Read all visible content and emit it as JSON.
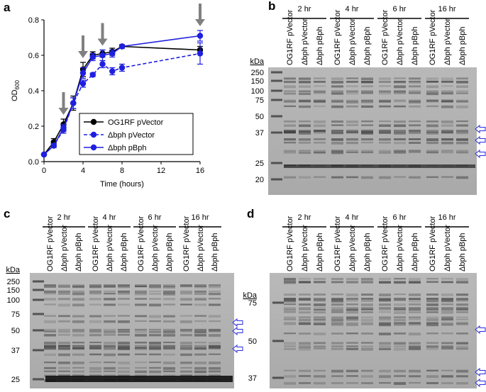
{
  "chart_data": {
    "type": "line",
    "panel_label": "a",
    "xlabel": "Time (hours)",
    "ylabel": {
      "text": "OD",
      "sub": "600"
    },
    "x": [
      0,
      1,
      2,
      3,
      4,
      5,
      6,
      7,
      8,
      16
    ],
    "series": [
      {
        "name": "OG1RF pVector",
        "color": "#000000",
        "line_style": "solid",
        "values": [
          0.04,
          0.11,
          0.21,
          0.33,
          0.52,
          0.6,
          0.61,
          0.62,
          0.65,
          0.63
        ],
        "errors": [
          0,
          0.02,
          0.03,
          0.04,
          0.04,
          0.02,
          0.02,
          0.02,
          0.01,
          0.02
        ]
      },
      {
        "name": "Δbph pVector",
        "color": "#1f1fe0",
        "line_style": "dashed",
        "values": [
          0.04,
          0.09,
          0.18,
          0.33,
          0.44,
          0.49,
          0.55,
          0.51,
          0.53,
          0.61
        ],
        "errors": [
          0,
          0.01,
          0.02,
          0.03,
          0.02,
          0.01,
          0.02,
          0.02,
          0.02,
          0.06
        ]
      },
      {
        "name": "Δbph pBph",
        "color": "#1f1fe0",
        "line_style": "solid",
        "values": [
          0.04,
          0.09,
          0.19,
          0.33,
          0.5,
          0.59,
          0.6,
          0.61,
          0.65,
          0.71
        ],
        "errors": [
          0,
          0.01,
          0.02,
          0.03,
          0.03,
          0.02,
          0.03,
          0.02,
          0.01,
          0.03
        ]
      }
    ],
    "arrow_x": [
      2,
      4,
      6,
      16
    ],
    "arrow_color": "#808080",
    "xlim": [
      0,
      16
    ],
    "xticks": [
      0,
      4,
      8,
      12,
      16
    ],
    "ylim": [
      0,
      0.8
    ],
    "yticks": [
      {
        "value": 0,
        "label": "0.0"
      },
      0.2,
      0.4,
      0.6,
      0.8
    ]
  },
  "gels": [
    {
      "panel_label": "b",
      "groups": [
        "2 hr",
        "4 hr",
        "6 hr",
        "16 hr"
      ],
      "lanes": [
        "OG1RF pVector",
        "Δbph pVector",
        "Δbph pBph"
      ],
      "kda_title": "kDa",
      "markers": [
        "250",
        "150",
        "100",
        "75",
        "50",
        "37",
        "25",
        "20"
      ]
    },
    {
      "panel_label": "c",
      "groups": [
        "2 hr",
        "4 hr",
        "6 hr",
        "16 hr"
      ],
      "lanes": [
        "OG1RF pVector",
        "Δbph pVector",
        "Δbph pBph"
      ],
      "kda_title": "kDa",
      "markers": [
        "250",
        "150",
        "100",
        "75",
        "50",
        "37",
        "25"
      ]
    },
    {
      "panel_label": "d",
      "groups": [
        "2 hr",
        "4 hr",
        "6 hr",
        "16 hr"
      ],
      "lanes": [
        "OG1RF pVector",
        "Δbph pVector",
        "Δbph pBph"
      ],
      "kda_title": "kDa",
      "markers": [
        "75",
        "50",
        "37"
      ]
    }
  ]
}
